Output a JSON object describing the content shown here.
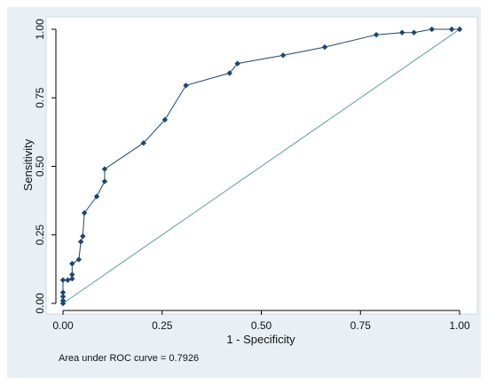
{
  "chart_data": {
    "type": "line",
    "xlabel": "1 - Specificity",
    "ylabel": "Sensitivity",
    "xlim": [
      0,
      1
    ],
    "ylim": [
      0,
      1
    ],
    "xticks": [
      0,
      0.25,
      0.5,
      0.75,
      1
    ],
    "yticks": [
      0,
      0.25,
      0.5,
      0.75,
      1
    ],
    "xtick_labels": [
      "0.00",
      "0.25",
      "0.50",
      "0.75",
      "1.00"
    ],
    "ytick_labels": [
      "0.00",
      "0.25",
      "0.50",
      "0.75",
      "1.00"
    ],
    "grid": false,
    "legend": "none",
    "note": "Area under ROC curve = 0.7926",
    "series": [
      {
        "role": "roc-curve",
        "color": "#1a476f",
        "marker": "diamond",
        "x": [
          0.0,
          0.0,
          0.0,
          0.0,
          0.0,
          0.012,
          0.023,
          0.023,
          0.023,
          0.04,
          0.045,
          0.05,
          0.054,
          0.085,
          0.105,
          0.105,
          0.203,
          0.257,
          0.31,
          0.42,
          0.44,
          0.555,
          0.66,
          0.79,
          0.855,
          0.885,
          0.93,
          0.98,
          1.0
        ],
        "y": [
          0.0,
          0.01,
          0.025,
          0.04,
          0.085,
          0.085,
          0.09,
          0.105,
          0.145,
          0.16,
          0.225,
          0.245,
          0.33,
          0.39,
          0.445,
          0.49,
          0.585,
          0.67,
          0.795,
          0.84,
          0.875,
          0.905,
          0.935,
          0.98,
          0.988,
          0.988,
          1.0,
          1.0,
          1.0
        ]
      },
      {
        "role": "reference-line",
        "color": "#5a9e9e",
        "x": [
          0,
          1
        ],
        "y": [
          0,
          1
        ]
      }
    ]
  }
}
